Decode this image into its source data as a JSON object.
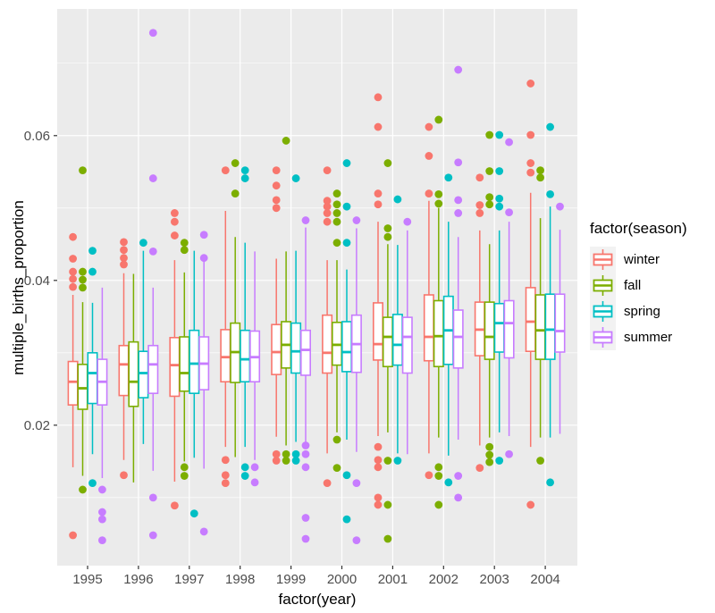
{
  "chart_data": {
    "type": "grouped_boxplot",
    "xlabel": "factor(year)",
    "ylabel": "multiple_births_proportion",
    "legend_title": "factor(season)",
    "years": [
      "1995",
      "1996",
      "1997",
      "1998",
      "1999",
      "2000",
      "2001",
      "2002",
      "2003",
      "2004"
    ],
    "seasons": [
      {
        "name": "winter",
        "color": "#F8766D"
      },
      {
        "name": "fall",
        "color": "#7CAE00"
      },
      {
        "name": "spring",
        "color": "#00BFC4"
      },
      {
        "name": "summer",
        "color": "#C77CFF"
      }
    ],
    "y_ticks": [
      0.02,
      0.04,
      0.06
    ],
    "y_tick_labels": [
      "0.02",
      "0.04",
      "0.06"
    ],
    "y_minor_gridlines": [
      0.01,
      0.03,
      0.05,
      0.07
    ],
    "ylim": [
      0.0006,
      0.0775
    ],
    "panel_bg": "#EBEBEB",
    "grid_color": "#FFFFFF",
    "tick_text_color": "#4D4D4D",
    "tick_mark_color": "#333333",
    "boxes": [
      {
        "year": "1995",
        "season": "winter",
        "median": 0.026,
        "q1": 0.0228,
        "q3": 0.0288,
        "whisker_low": 0.0142,
        "whisker_high": 0.038,
        "outliers": [
          0.046,
          0.043,
          0.0412,
          0.0402,
          0.0391,
          0.0048
        ]
      },
      {
        "year": "1995",
        "season": "fall",
        "median": 0.0251,
        "q1": 0.0222,
        "q3": 0.0284,
        "whisker_low": 0.013,
        "whisker_high": 0.037,
        "outliers": [
          0.0552,
          0.0412,
          0.0401,
          0.039,
          0.0111
        ]
      },
      {
        "year": "1995",
        "season": "spring",
        "median": 0.0272,
        "q1": 0.023,
        "q3": 0.03,
        "whisker_low": 0.016,
        "whisker_high": 0.0369,
        "outliers": [
          0.0441,
          0.0412,
          0.012
        ]
      },
      {
        "year": "1995",
        "season": "summer",
        "median": 0.026,
        "q1": 0.0228,
        "q3": 0.0291,
        "whisker_low": 0.0127,
        "whisker_high": 0.039,
        "outliers": [
          0.0111,
          0.008,
          0.007,
          0.0041
        ]
      },
      {
        "year": "1996",
        "season": "winter",
        "median": 0.0284,
        "q1": 0.0241,
        "q3": 0.031,
        "whisker_low": 0.0152,
        "whisker_high": 0.041,
        "outliers": [
          0.0453,
          0.0442,
          0.0431,
          0.0422,
          0.0131
        ]
      },
      {
        "year": "1996",
        "season": "fall",
        "median": 0.026,
        "q1": 0.0226,
        "q3": 0.0315,
        "whisker_low": 0.0121,
        "whisker_high": 0.0409,
        "outliers": []
      },
      {
        "year": "1996",
        "season": "spring",
        "median": 0.0272,
        "q1": 0.0238,
        "q3": 0.0302,
        "whisker_low": 0.0174,
        "whisker_high": 0.0441,
        "outliers": [
          0.0452
        ]
      },
      {
        "year": "1996",
        "season": "summer",
        "median": 0.0284,
        "q1": 0.0244,
        "q3": 0.031,
        "whisker_low": 0.0137,
        "whisker_high": 0.039,
        "outliers": [
          0.0742,
          0.0541,
          0.044,
          0.01,
          0.0048
        ]
      },
      {
        "year": "1997",
        "season": "winter",
        "median": 0.0283,
        "q1": 0.024,
        "q3": 0.0321,
        "whisker_low": 0.0122,
        "whisker_high": 0.0428,
        "outliers": [
          0.0493,
          0.0481,
          0.0462,
          0.0089
        ]
      },
      {
        "year": "1997",
        "season": "fall",
        "median": 0.0272,
        "q1": 0.0247,
        "q3": 0.0322,
        "whisker_low": 0.015,
        "whisker_high": 0.0411,
        "outliers": [
          0.0452,
          0.0442,
          0.0142,
          0.013
        ]
      },
      {
        "year": "1997",
        "season": "spring",
        "median": 0.0285,
        "q1": 0.0244,
        "q3": 0.0331,
        "whisker_low": 0.0155,
        "whisker_high": 0.0441,
        "outliers": [
          0.0078
        ]
      },
      {
        "year": "1997",
        "season": "summer",
        "median": 0.0285,
        "q1": 0.0249,
        "q3": 0.0322,
        "whisker_low": 0.014,
        "whisker_high": 0.0432,
        "outliers": [
          0.0463,
          0.0431,
          0.0053
        ]
      },
      {
        "year": "1998",
        "season": "winter",
        "median": 0.0294,
        "q1": 0.026,
        "q3": 0.0332,
        "whisker_low": 0.017,
        "whisker_high": 0.0496,
        "outliers": [
          0.0552,
          0.0152,
          0.0131,
          0.012
        ]
      },
      {
        "year": "1998",
        "season": "fall",
        "median": 0.0301,
        "q1": 0.0259,
        "q3": 0.0341,
        "whisker_low": 0.0156,
        "whisker_high": 0.046,
        "outliers": [
          0.0562,
          0.052
        ]
      },
      {
        "year": "1998",
        "season": "spring",
        "median": 0.0291,
        "q1": 0.026,
        "q3": 0.0331,
        "whisker_low": 0.017,
        "whisker_high": 0.0452,
        "outliers": [
          0.0552,
          0.0541,
          0.0142,
          0.013
        ]
      },
      {
        "year": "1998",
        "season": "summer",
        "median": 0.0294,
        "q1": 0.026,
        "q3": 0.033,
        "whisker_low": 0.0152,
        "whisker_high": 0.044,
        "outliers": [
          0.0142,
          0.0121
        ]
      },
      {
        "year": "1999",
        "season": "winter",
        "median": 0.0301,
        "q1": 0.027,
        "q3": 0.0339,
        "whisker_low": 0.0184,
        "whisker_high": 0.043,
        "outliers": [
          0.0552,
          0.0531,
          0.0511,
          0.05,
          0.016,
          0.0151
        ]
      },
      {
        "year": "1999",
        "season": "fall",
        "median": 0.0311,
        "q1": 0.0279,
        "q3": 0.0343,
        "whisker_low": 0.0172,
        "whisker_high": 0.044,
        "outliers": [
          0.0593,
          0.016,
          0.0151
        ]
      },
      {
        "year": "1999",
        "season": "spring",
        "median": 0.0302,
        "q1": 0.0272,
        "q3": 0.0341,
        "whisker_low": 0.0177,
        "whisker_high": 0.0441,
        "outliers": [
          0.0541,
          0.016,
          0.0151
        ]
      },
      {
        "year": "1999",
        "season": "summer",
        "median": 0.0304,
        "q1": 0.0269,
        "q3": 0.0331,
        "whisker_low": 0.0172,
        "whisker_high": 0.0473,
        "outliers": [
          0.0483,
          0.0172,
          0.016,
          0.0142,
          0.0072,
          0.0043
        ]
      },
      {
        "year": "2000",
        "season": "winter",
        "median": 0.03,
        "q1": 0.0272,
        "q3": 0.0352,
        "whisker_low": 0.0161,
        "whisker_high": 0.0428,
        "outliers": [
          0.0552,
          0.051,
          0.0502,
          0.0493,
          0.0481,
          0.012
        ]
      },
      {
        "year": "2000",
        "season": "fall",
        "median": 0.0311,
        "q1": 0.0283,
        "q3": 0.0342,
        "whisker_low": 0.019,
        "whisker_high": 0.0428,
        "outliers": [
          0.052,
          0.0505,
          0.0493,
          0.0481,
          0.0452,
          0.018,
          0.0141
        ]
      },
      {
        "year": "2000",
        "season": "spring",
        "median": 0.0301,
        "q1": 0.0274,
        "q3": 0.0343,
        "whisker_low": 0.018,
        "whisker_high": 0.0415,
        "outliers": [
          0.0562,
          0.0502,
          0.0452,
          0.0131,
          0.007
        ]
      },
      {
        "year": "2000",
        "season": "summer",
        "median": 0.0312,
        "q1": 0.0273,
        "q3": 0.0352,
        "whisker_low": 0.0163,
        "whisker_high": 0.0472,
        "outliers": [
          0.0483,
          0.012,
          0.0041
        ]
      },
      {
        "year": "2001",
        "season": "winter",
        "median": 0.0312,
        "q1": 0.029,
        "q3": 0.0369,
        "whisker_low": 0.0185,
        "whisker_high": 0.0481,
        "outliers": [
          0.0653,
          0.0612,
          0.052,
          0.0505,
          0.017,
          0.0152,
          0.0142,
          0.01,
          0.009
        ]
      },
      {
        "year": "2001",
        "season": "fall",
        "median": 0.0322,
        "q1": 0.0281,
        "q3": 0.0349,
        "whisker_low": 0.019,
        "whisker_high": 0.045,
        "outliers": [
          0.0562,
          0.0472,
          0.046,
          0.0151,
          0.009,
          0.0043
        ]
      },
      {
        "year": "2001",
        "season": "spring",
        "median": 0.0311,
        "q1": 0.0283,
        "q3": 0.0353,
        "whisker_low": 0.0161,
        "whisker_high": 0.0449,
        "outliers": [
          0.0512,
          0.0151
        ]
      },
      {
        "year": "2001",
        "season": "summer",
        "median": 0.0322,
        "q1": 0.0272,
        "q3": 0.0349,
        "whisker_low": 0.016,
        "whisker_high": 0.0469,
        "outliers": [
          0.0481
        ]
      },
      {
        "year": "2002",
        "season": "winter",
        "median": 0.0322,
        "q1": 0.0289,
        "q3": 0.038,
        "whisker_low": 0.0161,
        "whisker_high": 0.051,
        "outliers": [
          0.0612,
          0.0572,
          0.052,
          0.0131
        ]
      },
      {
        "year": "2002",
        "season": "fall",
        "median": 0.0323,
        "q1": 0.0281,
        "q3": 0.0372,
        "whisker_low": 0.0183,
        "whisker_high": 0.05,
        "outliers": [
          0.0622,
          0.0519,
          0.0506,
          0.0142,
          0.013,
          0.009
        ]
      },
      {
        "year": "2002",
        "season": "spring",
        "median": 0.0331,
        "q1": 0.0284,
        "q3": 0.0378,
        "whisker_low": 0.0158,
        "whisker_high": 0.0481,
        "outliers": [
          0.0542,
          0.0121
        ]
      },
      {
        "year": "2002",
        "season": "summer",
        "median": 0.0322,
        "q1": 0.0279,
        "q3": 0.0359,
        "whisker_low": 0.018,
        "whisker_high": 0.046,
        "outliers": [
          0.0691,
          0.0563,
          0.0511,
          0.0493,
          0.013,
          0.01
        ]
      },
      {
        "year": "2003",
        "season": "winter",
        "median": 0.0332,
        "q1": 0.0296,
        "q3": 0.037,
        "whisker_low": 0.0172,
        "whisker_high": 0.0469,
        "outliers": [
          0.0542,
          0.0504,
          0.0493,
          0.0141
        ]
      },
      {
        "year": "2003",
        "season": "fall",
        "median": 0.0322,
        "q1": 0.0291,
        "q3": 0.037,
        "whisker_low": 0.0183,
        "whisker_high": 0.045,
        "outliers": [
          0.0601,
          0.0551,
          0.0515,
          0.0505,
          0.017,
          0.0159,
          0.0149
        ]
      },
      {
        "year": "2003",
        "season": "spring",
        "median": 0.0341,
        "q1": 0.0301,
        "q3": 0.0368,
        "whisker_low": 0.019,
        "whisker_high": 0.0469,
        "outliers": [
          0.0601,
          0.0551,
          0.0513,
          0.0502,
          0.0151
        ]
      },
      {
        "year": "2003",
        "season": "summer",
        "median": 0.0341,
        "q1": 0.0293,
        "q3": 0.0372,
        "whisker_low": 0.0185,
        "whisker_high": 0.0481,
        "outliers": [
          0.0591,
          0.0494,
          0.016
        ]
      },
      {
        "year": "2004",
        "season": "winter",
        "median": 0.0343,
        "q1": 0.0302,
        "q3": 0.039,
        "whisker_low": 0.017,
        "whisker_high": 0.0521,
        "outliers": [
          0.0672,
          0.0601,
          0.0562,
          0.0549,
          0.009
        ]
      },
      {
        "year": "2004",
        "season": "fall",
        "median": 0.0331,
        "q1": 0.0291,
        "q3": 0.038,
        "whisker_low": 0.0183,
        "whisker_high": 0.0486,
        "outliers": [
          0.0552,
          0.0542,
          0.0151
        ]
      },
      {
        "year": "2004",
        "season": "spring",
        "median": 0.0332,
        "q1": 0.0291,
        "q3": 0.0381,
        "whisker_low": 0.0183,
        "whisker_high": 0.0502,
        "outliers": [
          0.0612,
          0.0519,
          0.0121
        ]
      },
      {
        "year": "2004",
        "season": "summer",
        "median": 0.033,
        "q1": 0.0301,
        "q3": 0.0381,
        "whisker_low": 0.0188,
        "whisker_high": 0.047,
        "outliers": [
          0.0502
        ]
      }
    ]
  }
}
